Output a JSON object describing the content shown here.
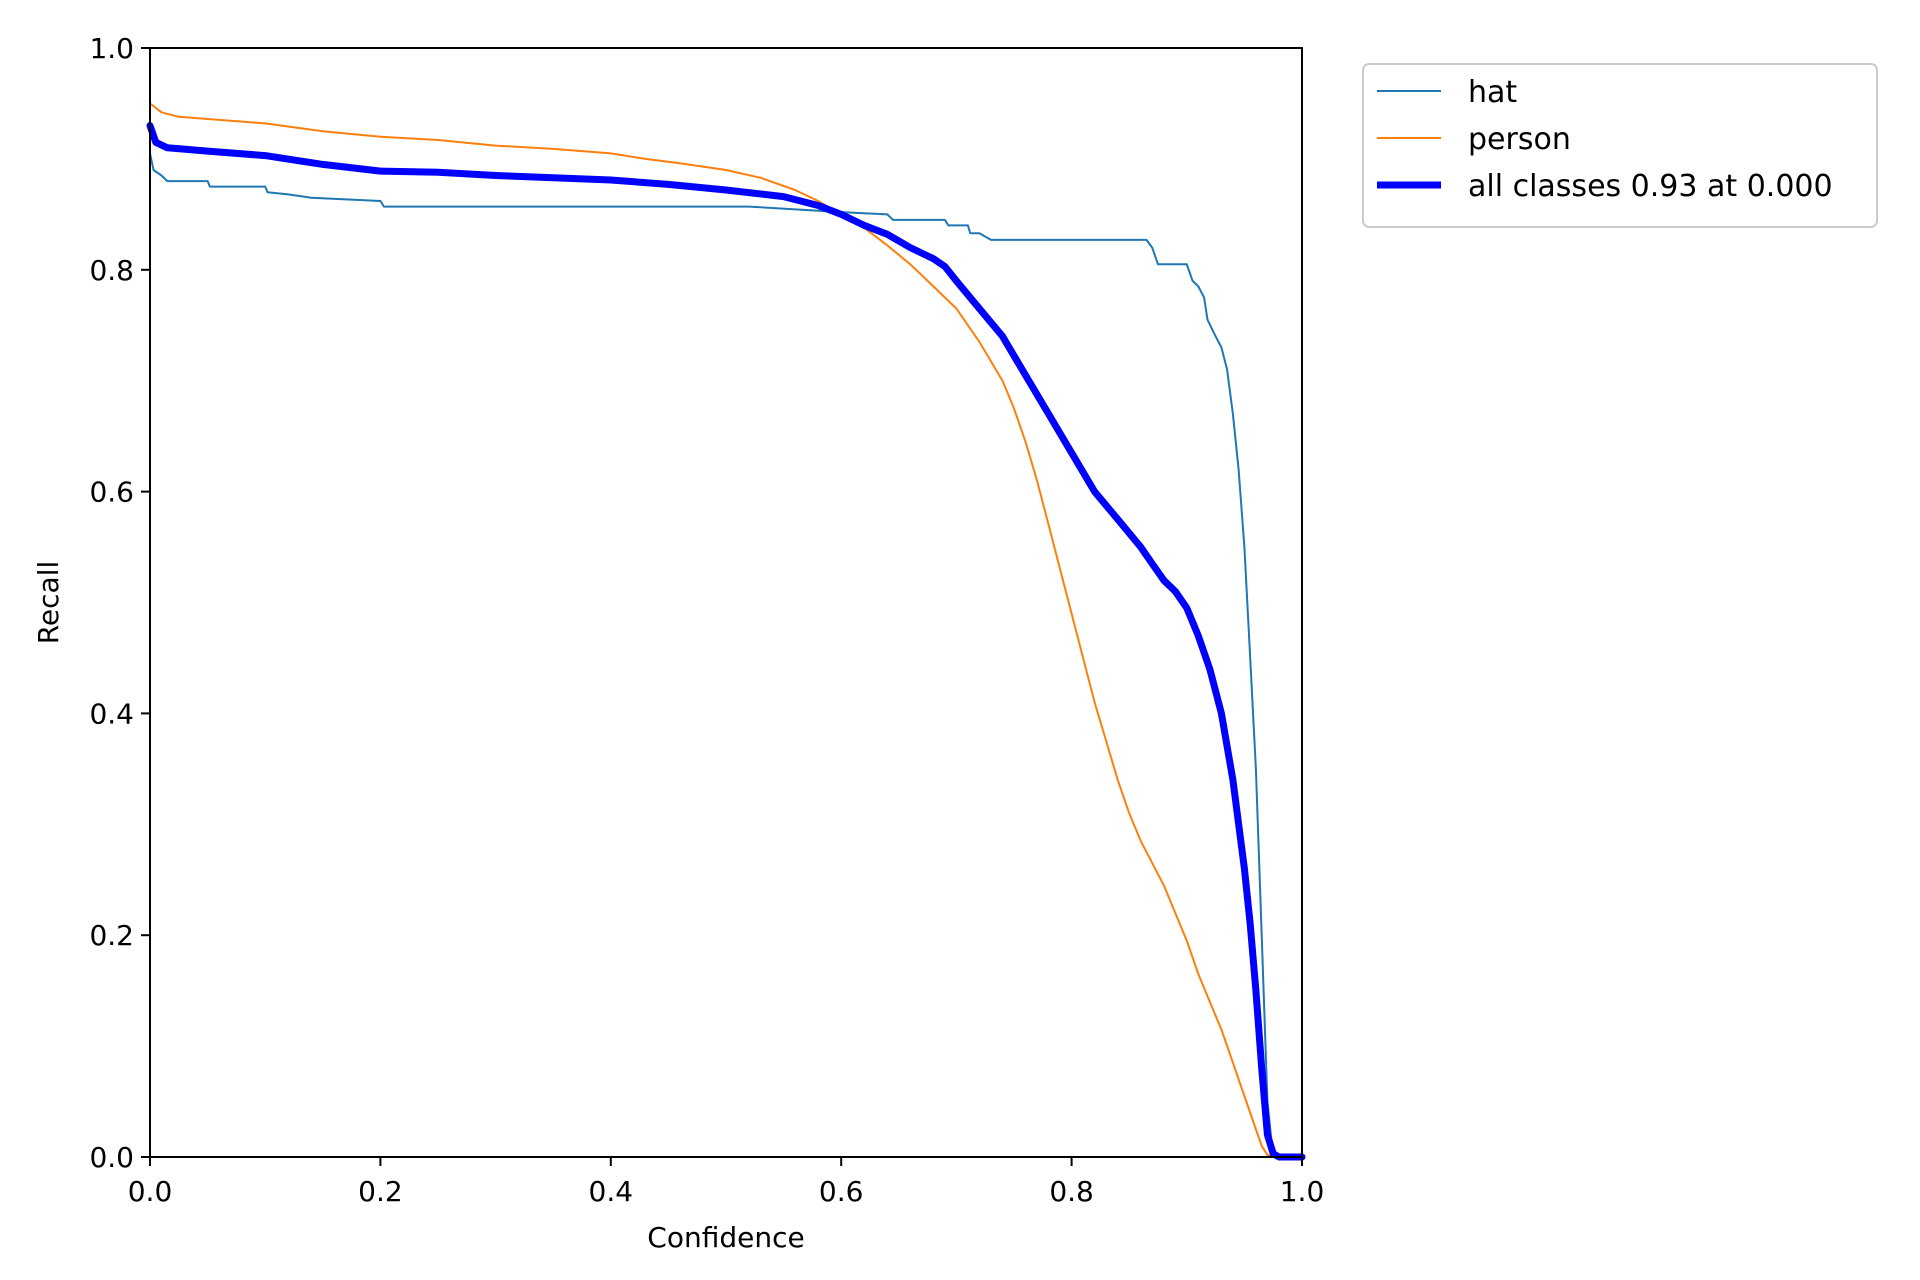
{
  "chart_data": {
    "type": "line",
    "title": "",
    "xlabel": "Confidence",
    "ylabel": "Recall",
    "xlim": [
      0.0,
      1.0
    ],
    "ylim": [
      0.0,
      1.0
    ],
    "grid": false,
    "legend_position": "outside-top-right",
    "x_ticks": [
      "0.0",
      "0.2",
      "0.4",
      "0.6",
      "0.8",
      "1.0"
    ],
    "y_ticks": [
      "0.0",
      "0.2",
      "0.4",
      "0.6",
      "0.8",
      "1.0"
    ],
    "series": [
      {
        "name": "hat",
        "color": "#1f77b4",
        "emphasis": "thin",
        "points": [
          [
            0.0,
            0.905
          ],
          [
            0.003,
            0.89
          ],
          [
            0.01,
            0.885
          ],
          [
            0.015,
            0.88
          ],
          [
            0.05,
            0.88
          ],
          [
            0.052,
            0.875
          ],
          [
            0.1,
            0.875
          ],
          [
            0.102,
            0.87
          ],
          [
            0.12,
            0.868
          ],
          [
            0.14,
            0.865
          ],
          [
            0.2,
            0.862
          ],
          [
            0.203,
            0.857
          ],
          [
            0.3,
            0.857
          ],
          [
            0.4,
            0.857
          ],
          [
            0.52,
            0.857
          ],
          [
            0.6,
            0.852
          ],
          [
            0.64,
            0.85
          ],
          [
            0.645,
            0.845
          ],
          [
            0.69,
            0.845
          ],
          [
            0.693,
            0.84
          ],
          [
            0.71,
            0.84
          ],
          [
            0.712,
            0.833
          ],
          [
            0.72,
            0.833
          ],
          [
            0.73,
            0.827
          ],
          [
            0.78,
            0.827
          ],
          [
            0.83,
            0.827
          ],
          [
            0.865,
            0.827
          ],
          [
            0.87,
            0.82
          ],
          [
            0.875,
            0.805
          ],
          [
            0.9,
            0.805
          ],
          [
            0.905,
            0.79
          ],
          [
            0.91,
            0.785
          ],
          [
            0.915,
            0.775
          ],
          [
            0.918,
            0.755
          ],
          [
            0.925,
            0.74
          ],
          [
            0.93,
            0.73
          ],
          [
            0.935,
            0.71
          ],
          [
            0.94,
            0.67
          ],
          [
            0.945,
            0.62
          ],
          [
            0.95,
            0.55
          ],
          [
            0.955,
            0.45
          ],
          [
            0.96,
            0.35
          ],
          [
            0.965,
            0.2
          ],
          [
            0.97,
            0.05
          ],
          [
            0.975,
            0.0
          ],
          [
            1.0,
            0.0
          ]
        ]
      },
      {
        "name": "person",
        "color": "#ff7f0e",
        "emphasis": "thin",
        "points": [
          [
            0.0,
            0.95
          ],
          [
            0.01,
            0.942
          ],
          [
            0.025,
            0.938
          ],
          [
            0.05,
            0.936
          ],
          [
            0.1,
            0.932
          ],
          [
            0.15,
            0.925
          ],
          [
            0.2,
            0.92
          ],
          [
            0.25,
            0.917
          ],
          [
            0.3,
            0.912
          ],
          [
            0.35,
            0.909
          ],
          [
            0.4,
            0.905
          ],
          [
            0.43,
            0.9
          ],
          [
            0.46,
            0.896
          ],
          [
            0.5,
            0.89
          ],
          [
            0.53,
            0.883
          ],
          [
            0.56,
            0.872
          ],
          [
            0.58,
            0.862
          ],
          [
            0.6,
            0.85
          ],
          [
            0.62,
            0.838
          ],
          [
            0.64,
            0.822
          ],
          [
            0.66,
            0.805
          ],
          [
            0.68,
            0.785
          ],
          [
            0.7,
            0.765
          ],
          [
            0.72,
            0.735
          ],
          [
            0.74,
            0.7
          ],
          [
            0.75,
            0.675
          ],
          [
            0.76,
            0.645
          ],
          [
            0.77,
            0.61
          ],
          [
            0.78,
            0.57
          ],
          [
            0.79,
            0.53
          ],
          [
            0.8,
            0.49
          ],
          [
            0.81,
            0.45
          ],
          [
            0.82,
            0.41
          ],
          [
            0.83,
            0.375
          ],
          [
            0.84,
            0.34
          ],
          [
            0.85,
            0.31
          ],
          [
            0.86,
            0.285
          ],
          [
            0.87,
            0.265
          ],
          [
            0.88,
            0.245
          ],
          [
            0.89,
            0.22
          ],
          [
            0.9,
            0.195
          ],
          [
            0.91,
            0.165
          ],
          [
            0.92,
            0.14
          ],
          [
            0.93,
            0.115
          ],
          [
            0.94,
            0.085
          ],
          [
            0.95,
            0.055
          ],
          [
            0.96,
            0.025
          ],
          [
            0.965,
            0.01
          ],
          [
            0.97,
            0.002
          ],
          [
            0.975,
            0.0
          ],
          [
            1.0,
            0.0
          ]
        ]
      },
      {
        "name": "all classes 0.93 at 0.000",
        "color": "#0000ff",
        "emphasis": "thick",
        "points": [
          [
            0.0,
            0.93
          ],
          [
            0.005,
            0.915
          ],
          [
            0.015,
            0.91
          ],
          [
            0.05,
            0.907
          ],
          [
            0.1,
            0.903
          ],
          [
            0.15,
            0.895
          ],
          [
            0.2,
            0.889
          ],
          [
            0.25,
            0.888
          ],
          [
            0.3,
            0.885
          ],
          [
            0.35,
            0.883
          ],
          [
            0.4,
            0.881
          ],
          [
            0.45,
            0.877
          ],
          [
            0.5,
            0.872
          ],
          [
            0.55,
            0.866
          ],
          [
            0.58,
            0.858
          ],
          [
            0.6,
            0.85
          ],
          [
            0.62,
            0.84
          ],
          [
            0.64,
            0.832
          ],
          [
            0.66,
            0.82
          ],
          [
            0.68,
            0.81
          ],
          [
            0.69,
            0.803
          ],
          [
            0.7,
            0.79
          ],
          [
            0.72,
            0.765
          ],
          [
            0.74,
            0.74
          ],
          [
            0.76,
            0.705
          ],
          [
            0.78,
            0.67
          ],
          [
            0.8,
            0.635
          ],
          [
            0.82,
            0.6
          ],
          [
            0.84,
            0.575
          ],
          [
            0.86,
            0.55
          ],
          [
            0.87,
            0.535
          ],
          [
            0.88,
            0.52
          ],
          [
            0.89,
            0.51
          ],
          [
            0.9,
            0.495
          ],
          [
            0.91,
            0.47
          ],
          [
            0.92,
            0.44
          ],
          [
            0.93,
            0.4
          ],
          [
            0.94,
            0.34
          ],
          [
            0.95,
            0.26
          ],
          [
            0.955,
            0.21
          ],
          [
            0.96,
            0.15
          ],
          [
            0.965,
            0.08
          ],
          [
            0.97,
            0.02
          ],
          [
            0.975,
            0.003
          ],
          [
            0.98,
            0.0
          ],
          [
            1.0,
            0.0
          ]
        ]
      }
    ]
  }
}
